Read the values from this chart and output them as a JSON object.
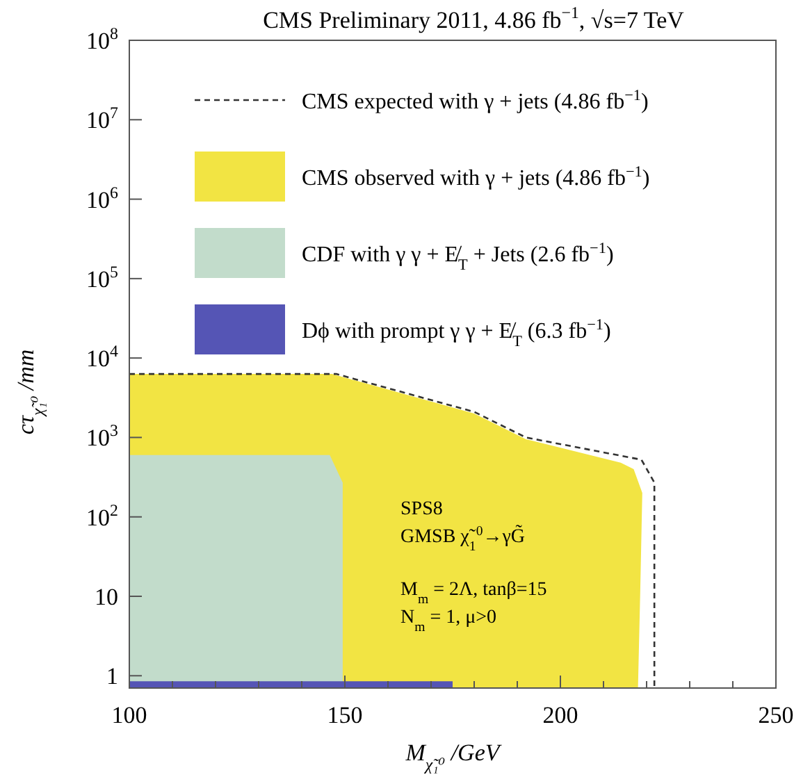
{
  "chart_data": {
    "type": "area",
    "title": "CMS Preliminary 2011, 4.86 fb$^{−1}$, √s=7 TeV",
    "xlabel": "M$_{χ̃₁⁰}$ /GeV",
    "ylabel": "cτ$_{χ̃₁⁰}$ /mm",
    "log": "y",
    "xlim": [
      100,
      250
    ],
    "ylim": [
      0.7,
      100000000
    ],
    "xticks": [
      100,
      {
        "value": 110,
        "label": null
      },
      {
        "value": 120,
        "label": null
      },
      {
        "value": 130,
        "label": null
      },
      {
        "value": 140,
        "label": null
      },
      150,
      {
        "value": 160,
        "label": null
      },
      {
        "value": 170,
        "label": null
      },
      {
        "value": 180,
        "label": null
      },
      {
        "value": 190,
        "label": null
      },
      200,
      {
        "value": 210,
        "label": null
      },
      {
        "value": 220,
        "label": null
      },
      {
        "value": 230,
        "label": null
      },
      {
        "value": 240,
        "label": null
      },
      250
    ],
    "yticks": [
      1,
      10,
      {
        "value": 100,
        "label": "10$^{2}$"
      },
      {
        "value": 1000,
        "label": "10$^{3}$"
      },
      {
        "value": 10000,
        "label": "10$^{4}$"
      },
      {
        "value": 100000,
        "label": "10$^{5}$"
      },
      {
        "value": 1000000,
        "label": "10$^{6}$"
      },
      {
        "value": 10000000,
        "label": "10$^{7}$"
      },
      {
        "value": 100000000,
        "label": "10$^{8}$"
      }
    ],
    "grid": false,
    "legend": "top right",
    "series": [
      {
        "name": "CMS expected with γ + jets (4.86 fb$^{−1}$)",
        "type": "line",
        "line_style": "dashed",
        "color": "#333333",
        "x": [
          100,
          148,
          180,
          192,
          218.8,
          221.8,
          221.8
        ],
        "values": [
          6300,
          6300,
          2100,
          1000,
          525,
          270,
          0.7
        ]
      },
      {
        "name": "CMS observed with γ + jets (4.86 fb$^{−1}$)",
        "color": "#f2e443",
        "x": [
          100,
          147,
          180,
          192,
          214,
          217,
          219,
          218.5,
          218
        ],
        "values": [
          6300,
          6300,
          2000,
          950,
          480,
          400,
          200,
          10,
          0.7
        ]
      },
      {
        "name": "CDF with γ γ + E̸$_{T}$ + Jets (2.6 fb$^{−1}$)",
        "color": "#c2dccb",
        "x": [
          100,
          146.5,
          149.5,
          149.5
        ],
        "values": [
          600,
          600,
          270,
          0.7
        ]
      },
      {
        "name": "Dϕ with prompt γ γ + E̸$_{T}$ (6.3 fb$^{−1}$)",
        "color": "#5555b5",
        "x": [
          100,
          175
        ],
        "values": [
          0.85,
          0.85
        ]
      }
    ],
    "annotations": [
      "SPS8",
      "GMSB χ̃$_{1}$$^{0}$→γG̃",
      "M$_{m}$ = 2Λ, tanβ=15",
      "N$_{m}$ = 1, μ>0"
    ]
  }
}
